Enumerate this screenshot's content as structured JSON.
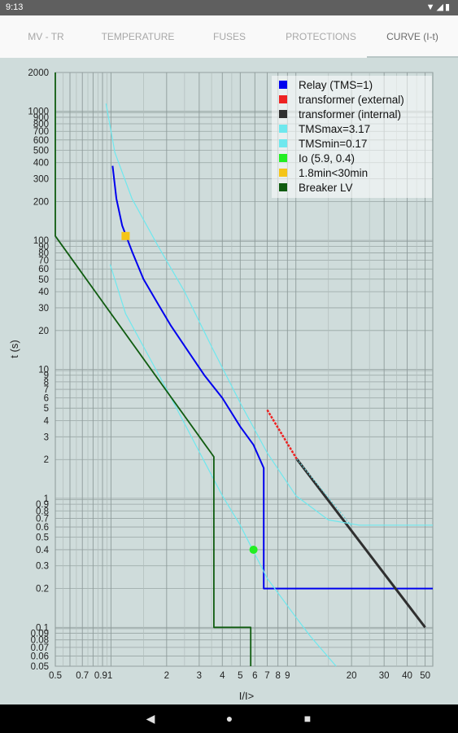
{
  "status": {
    "time": "9:13",
    "icons": "▼◢▮"
  },
  "tabs": [
    {
      "label": "MV - TR",
      "active": false
    },
    {
      "label": "TEMPERATURE",
      "active": false
    },
    {
      "label": "FUSES",
      "active": false
    },
    {
      "label": "PROTECTIONS",
      "active": false
    },
    {
      "label": "CURVE (I-t)",
      "active": true
    }
  ],
  "nav": {
    "back_icon": "◀",
    "home_icon": "●",
    "recents_icon": "■"
  },
  "chart_data": {
    "type": "line",
    "xlabel": "I/I>",
    "ylabel": "t (s)",
    "x_scale": "log",
    "y_scale": "log",
    "xlim": [
      0.5,
      55
    ],
    "ylim": [
      0.05,
      2000
    ],
    "grid": true,
    "legend_position": "top-right",
    "x_ticks": [
      {
        "v": 0.5,
        "label": "0.5"
      },
      {
        "v": 0.7,
        "label": "0.7"
      },
      {
        "v": 0.91,
        "label": "0.91"
      },
      {
        "v": 2,
        "label": "2"
      },
      {
        "v": 3,
        "label": "3"
      },
      {
        "v": 4,
        "label": "4"
      },
      {
        "v": 5,
        "label": "5"
      },
      {
        "v": 6,
        "label": "6"
      },
      {
        "v": 7,
        "label": "7"
      },
      {
        "v": 8,
        "label": "8"
      },
      {
        "v": 9,
        "label": "9"
      },
      {
        "v": 20,
        "label": "20"
      },
      {
        "v": 30,
        "label": "30"
      },
      {
        "v": 40,
        "label": "40"
      },
      {
        "v": 50,
        "label": "50"
      }
    ],
    "y_ticks": [
      {
        "v": 2000,
        "label": "2000"
      },
      {
        "v": 1000,
        "label": "1000"
      },
      {
        "v": 900,
        "label": "900"
      },
      {
        "v": 800,
        "label": "800"
      },
      {
        "v": 700,
        "label": "700"
      },
      {
        "v": 600,
        "label": "600"
      },
      {
        "v": 500,
        "label": "500"
      },
      {
        "v": 400,
        "label": "400"
      },
      {
        "v": 300,
        "label": "300"
      },
      {
        "v": 200,
        "label": "200"
      },
      {
        "v": 100,
        "label": "100"
      },
      {
        "v": 90,
        "label": "90"
      },
      {
        "v": 80,
        "label": "80"
      },
      {
        "v": 70,
        "label": "70"
      },
      {
        "v": 60,
        "label": "60"
      },
      {
        "v": 50,
        "label": "50"
      },
      {
        "v": 40,
        "label": "40"
      },
      {
        "v": 30,
        "label": "30"
      },
      {
        "v": 20,
        "label": "20"
      },
      {
        "v": 10,
        "label": "10"
      },
      {
        "v": 9,
        "label": "9"
      },
      {
        "v": 8,
        "label": "8"
      },
      {
        "v": 7,
        "label": "7"
      },
      {
        "v": 6,
        "label": "6"
      },
      {
        "v": 5,
        "label": "5"
      },
      {
        "v": 4,
        "label": "4"
      },
      {
        "v": 3,
        "label": "3"
      },
      {
        "v": 2,
        "label": "2"
      },
      {
        "v": 1,
        "label": "1"
      },
      {
        "v": 0.9,
        "label": "0.9"
      },
      {
        "v": 0.8,
        "label": "0.8"
      },
      {
        "v": 0.7,
        "label": "0.7"
      },
      {
        "v": 0.6,
        "label": "0.6"
      },
      {
        "v": 0.5,
        "label": "0.5"
      },
      {
        "v": 0.4,
        "label": "0.4"
      },
      {
        "v": 0.3,
        "label": "0.3"
      },
      {
        "v": 0.2,
        "label": "0.2"
      },
      {
        "v": 0.1,
        "label": "0.1"
      },
      {
        "v": 0.09,
        "label": "0.09"
      },
      {
        "v": 0.08,
        "label": "0.08"
      },
      {
        "v": 0.07,
        "label": "0.07"
      },
      {
        "v": 0.06,
        "label": "0.06"
      },
      {
        "v": 0.05,
        "label": "0.05"
      }
    ],
    "x_grid_major": [
      0.5,
      0.6,
      0.7,
      0.8,
      0.9,
      1,
      2,
      3,
      4,
      5,
      6,
      7,
      8,
      9,
      10,
      20,
      30,
      40,
      50
    ],
    "x_grid_minor": [
      0.55,
      0.65,
      0.75,
      0.85,
      0.95,
      1.5,
      2.5,
      3.5,
      4.5,
      15,
      25,
      35,
      45
    ],
    "series": [
      {
        "name": "Relay (TMS=1)",
        "color": "#0000ee",
        "width": 2,
        "style": "solid",
        "points": [
          [
            1.02,
            378
          ],
          [
            1.07,
            210
          ],
          [
            1.15,
            130
          ],
          [
            1.3,
            82
          ],
          [
            1.5,
            50
          ],
          [
            1.8,
            32
          ],
          [
            2.1,
            22
          ],
          [
            2.6,
            14
          ],
          [
            3.2,
            9
          ],
          [
            4,
            6
          ],
          [
            5,
            3.6
          ],
          [
            5.9,
            2.6
          ],
          [
            6.7,
            1.72
          ],
          [
            6.7,
            0.2
          ],
          [
            55,
            0.2
          ]
        ]
      },
      {
        "name": "transformer (external)",
        "color": "#ee2222",
        "width": 2.5,
        "style": "dashed",
        "points": [
          [
            7.0,
            4.85
          ],
          [
            10.1,
            2.02
          ]
        ]
      },
      {
        "name": "transformer (internal)",
        "color": "#2f2f2f",
        "width": 3,
        "style": "solid",
        "points": [
          [
            10.1,
            2.02
          ],
          [
            50,
            0.1
          ]
        ]
      },
      {
        "name": "TMSmax=3.17",
        "color": "#6ee8ee",
        "width": 1.2,
        "style": "solid",
        "points": [
          [
            0.94,
            1150
          ],
          [
            1.05,
            480
          ],
          [
            1.3,
            210
          ],
          [
            1.8,
            90
          ],
          [
            2.5,
            40
          ],
          [
            3.5,
            15
          ],
          [
            5,
            5.5
          ],
          [
            7,
            2.25
          ],
          [
            10,
            1.05
          ],
          [
            15,
            0.68
          ],
          [
            22,
            0.62
          ],
          [
            55,
            0.62
          ]
        ]
      },
      {
        "name": "TMSmin=0.17",
        "color": "#6ee8ee",
        "width": 1.2,
        "style": "solid",
        "points": [
          [
            0.99,
            65
          ],
          [
            1.2,
            27
          ],
          [
            1.5,
            15
          ],
          [
            2,
            7
          ],
          [
            3,
            2.3
          ],
          [
            4,
            1.05
          ],
          [
            5,
            0.62
          ],
          [
            6,
            0.37
          ],
          [
            7,
            0.24
          ],
          [
            8,
            0.185
          ],
          [
            10,
            0.12
          ],
          [
            12,
            0.085
          ],
          [
            16.5,
            0.05
          ]
        ]
      },
      {
        "name": "Io (5.9, 0.4)",
        "color": "#22ee22",
        "marker": true,
        "size": 6,
        "points": [
          [
            5.9,
            0.4
          ]
        ]
      },
      {
        "name": "1.8min<30min",
        "color": "#f5c518",
        "marker": true,
        "size": 6,
        "points": [
          [
            1.2,
            108
          ]
        ]
      },
      {
        "name": "Breaker LV",
        "color": "#105c10",
        "width": 1.8,
        "style": "solid",
        "points": [
          [
            0.5,
            2000
          ],
          [
            0.5,
            108
          ],
          [
            3.6,
            2.1
          ],
          [
            3.6,
            0.1
          ],
          [
            5.7,
            0.1
          ],
          [
            5.7,
            0.05
          ]
        ]
      }
    ]
  }
}
